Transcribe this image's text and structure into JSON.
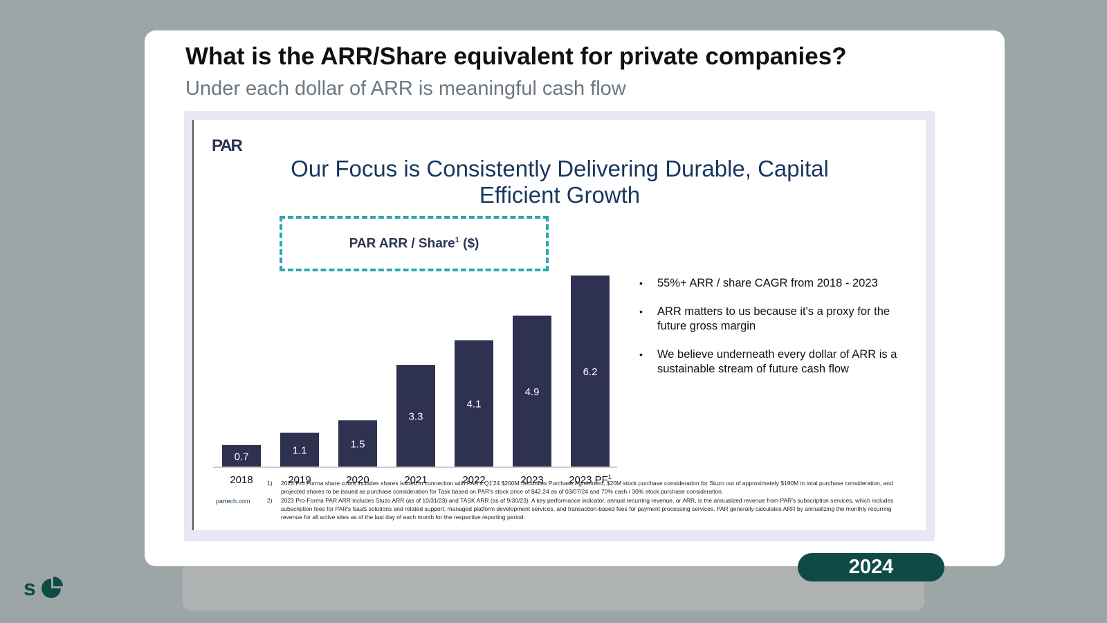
{
  "header": {
    "title": "What is the ARR/Share equivalent for private companies?",
    "subtitle": "Under each dollar of ARR is meaningful cash flow"
  },
  "slide": {
    "logo_text": "PAR",
    "title_line1": "Our Focus is Consistently Delivering Durable, Capital",
    "title_line2": "Efficient Growth",
    "chart_box_label": "PAR ARR / Share",
    "chart_box_sup": "1",
    "chart_box_unit": " ($)",
    "bullets": [
      "55%+ ARR / share CAGR from 2018 - 2023",
      "ARR matters to us because it's a proxy for the future gross margin",
      "We believe underneath every dollar of ARR is a sustainable stream of future cash flow"
    ],
    "site": "partech.com",
    "footnotes": [
      {
        "num": "1)",
        "text": "2023 Pro Forma share count includes shares issued in connection with PAR's Q1'24 $200M Securities Purchase Agreement, $20M stock purchase consideration for Stuzo out of approximately $190M in total purchase consideration, and projected shares to be issued as purchase consideration for Task based on PAR's stock price of $42.24 as of 03/07/24 and 70% cash / 30% stock purchase consideration."
      },
      {
        "num": "2)",
        "text": "2023 Pro-Forma PAR ARR includes Stuzo ARR (as of 10/31/23) and TASK ARR (as of 9/30/23). A key performance indicator, annual recurring revenue, or ARR, is the annualized revenue from PAR's subscription services, which includes subscription fees for PAR's SaaS solutions and related support, managed platform development services, and transaction-based fees for payment processing services. PAR generally calculates ARR by annualizing the monthly recurring revenue for all active sites as of the last day of each month for the respective reporting period."
      }
    ]
  },
  "chart_data": {
    "type": "bar",
    "categories": [
      "2018",
      "2019",
      "2020",
      "2021",
      "2022",
      "2023",
      "2023 PF"
    ],
    "category_superscripts": [
      "",
      "",
      "",
      "",
      "",
      "",
      "1"
    ],
    "values": [
      0.7,
      1.1,
      1.5,
      3.3,
      4.1,
      4.9,
      6.2
    ],
    "value_labels": [
      "0.7",
      "1.1",
      "1.5",
      "3.3",
      "4.1",
      "4.9",
      "6.2"
    ],
    "title": "PAR ARR / Share1 ($)",
    "ylim": [
      0,
      6.2
    ],
    "grid": false,
    "bar_color": "#2e3150"
  },
  "badge": {
    "year": "2024"
  },
  "colors": {
    "background": "#9da6a6",
    "slide_title": "#17375e",
    "accent_dashed": "#2aa7b4",
    "badge": "#0f4a46"
  }
}
